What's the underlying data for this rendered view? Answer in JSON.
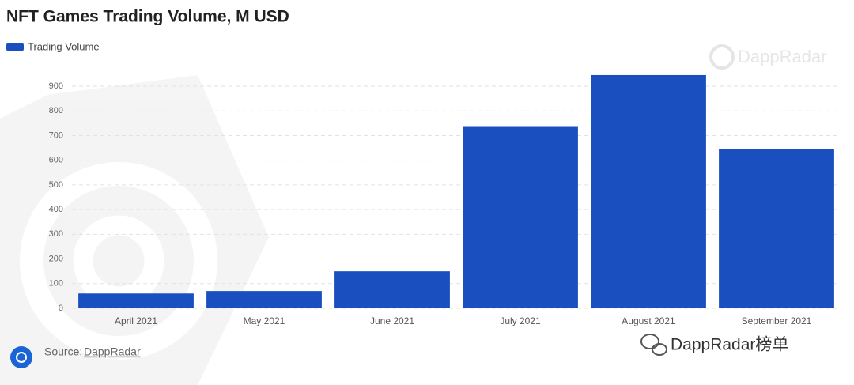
{
  "chart_data": {
    "type": "bar",
    "title": "NFT Games Trading Volume, M USD",
    "categories": [
      "April 2021",
      "May 2021",
      "June 2021",
      "July 2021",
      "August 2021",
      "September 2021"
    ],
    "series": [
      {
        "name": "Trading Volume",
        "color": "#1a4fbf",
        "values": [
          60,
          70,
          150,
          735,
          945,
          645
        ]
      }
    ],
    "ylim": [
      0,
      950
    ],
    "yticks": [
      0,
      100,
      200,
      300,
      400,
      500,
      600,
      700,
      800,
      900
    ],
    "grid": true,
    "source_label": "Source:",
    "source_name": "DappRadar",
    "watermark": "DappRadar",
    "wechat_watermark": "DappRadar榜单"
  }
}
